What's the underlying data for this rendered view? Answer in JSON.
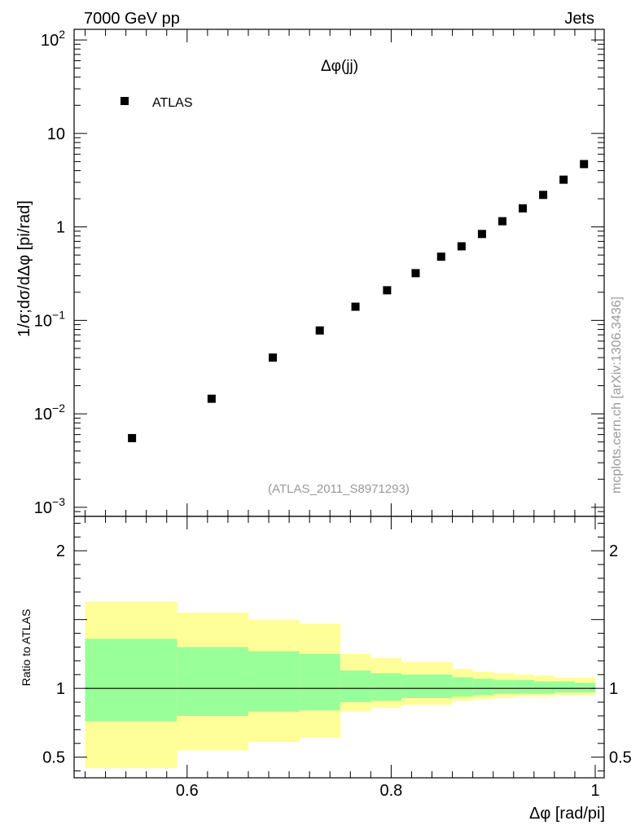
{
  "header": {
    "left_label": "7000 GeV pp",
    "right_label": "Jets"
  },
  "side_label": "mcplots.cern.ch [arXiv:1306.3436]",
  "colors": {
    "band_outer": "#ffff99",
    "band_inner": "#99ff99",
    "marker": "#000000",
    "watermark": "#999999"
  },
  "chart_data": [
    {
      "type": "scatter",
      "title": "Δφ(jj)",
      "ylabel": "1/σ;dσ/dΔφ [pi/rad]",
      "xlabel": "",
      "yscale": "log",
      "xlim": [
        0.5,
        1.0
      ],
      "ylim": [
        0.0008,
        130
      ],
      "legend": {
        "position": "top-left",
        "entries": [
          "ATLAS"
        ]
      },
      "annotation": "(ATLAS_2011_S8971293)",
      "y_ticks": [
        {
          "value": 0.001,
          "base": "10",
          "exp": "−3"
        },
        {
          "value": 0.01,
          "base": "10",
          "exp": "−2"
        },
        {
          "value": 0.1,
          "base": "10",
          "exp": "−1"
        },
        {
          "value": 1,
          "base": "1",
          "exp": ""
        },
        {
          "value": 10,
          "base": "10",
          "exp": ""
        },
        {
          "value": 100,
          "base": "10",
          "exp": "2"
        }
      ],
      "series": [
        {
          "name": "ATLAS",
          "x": [
            0.546,
            0.624,
            0.684,
            0.73,
            0.765,
            0.796,
            0.824,
            0.849,
            0.869,
            0.889,
            0.909,
            0.929,
            0.949,
            0.969,
            0.989
          ],
          "y": [
            0.0055,
            0.0145,
            0.04,
            0.078,
            0.14,
            0.21,
            0.32,
            0.48,
            0.62,
            0.84,
            1.15,
            1.58,
            2.2,
            3.2,
            4.7
          ]
        }
      ]
    },
    {
      "type": "area",
      "ylabel": "Ratio to ATLAS",
      "xlabel": "Δφ [rad/pi]",
      "xlim": [
        0.5,
        1.0
      ],
      "ylim": [
        0.35,
        2.25
      ],
      "y_ticks": [
        "0.5",
        "1",
        "2"
      ],
      "x_ticks": [
        "0.6",
        "0.8",
        "1"
      ],
      "reference_line": 1.0,
      "bins": [
        0.5,
        0.59,
        0.66,
        0.71,
        0.75,
        0.78,
        0.81,
        0.86,
        0.88,
        0.9,
        0.92,
        0.94,
        0.96,
        0.98,
        1.0
      ],
      "outer_band_low": [
        0.42,
        0.55,
        0.61,
        0.64,
        0.83,
        0.86,
        0.88,
        0.91,
        0.92,
        0.93,
        0.94,
        0.94,
        0.95,
        0.95
      ],
      "outer_band_high": [
        1.63,
        1.55,
        1.5,
        1.47,
        1.25,
        1.22,
        1.19,
        1.14,
        1.12,
        1.11,
        1.1,
        1.09,
        1.08,
        1.08
      ],
      "inner_band_low": [
        0.76,
        0.8,
        0.83,
        0.84,
        0.9,
        0.91,
        0.93,
        0.94,
        0.95,
        0.96,
        0.96,
        0.96,
        0.97,
        0.97
      ],
      "inner_band_high": [
        1.36,
        1.3,
        1.27,
        1.25,
        1.13,
        1.11,
        1.1,
        1.08,
        1.07,
        1.06,
        1.06,
        1.05,
        1.05,
        1.04
      ]
    }
  ]
}
